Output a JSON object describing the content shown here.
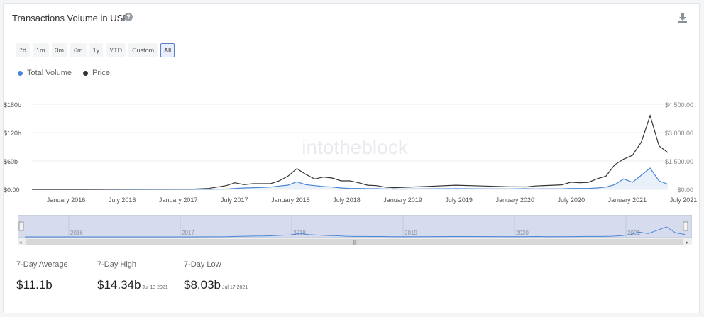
{
  "header": {
    "title": "Transactions Volume in USD",
    "help_icon": "question-circle-icon",
    "download_icon": "download-icon"
  },
  "ranges": [
    "7d",
    "1m",
    "3m",
    "6m",
    "1y",
    "YTD",
    "Custom",
    "All"
  ],
  "active_range": "All",
  "watermark": "intotheblock",
  "colors": {
    "volume": "#4a86d6",
    "price": "#333333",
    "avg": "#3d5fa8",
    "high": "#7ab648",
    "low": "#c96a4b"
  },
  "stats": [
    {
      "label": "7-Day Average",
      "value": "$11.1b",
      "date": ""
    },
    {
      "label": "7-Day High",
      "value": "$14.34b",
      "date": "Jul 13 2021"
    },
    {
      "label": "7-Day Low",
      "value": "$8.03b",
      "date": "Jul 17 2021"
    }
  ],
  "navigator": {
    "years": [
      "2016",
      "2017",
      "2018",
      "2019",
      "2020",
      "2021"
    ],
    "scroll_handle": "|||"
  },
  "chart_data": {
    "type": "line",
    "title": "Transactions Volume in USD",
    "x": [
      "Jul 2015",
      "Jan 2016",
      "Jul 2016",
      "Jan 2017",
      "Mar 2017",
      "May 2017",
      "Jun 2017",
      "Jul 2017",
      "Aug 2017",
      "Sep 2017",
      "Oct 2017",
      "Nov 2017",
      "Dec 2017",
      "Jan 2018",
      "Feb 2018",
      "Mar 2018",
      "Apr 2018",
      "May 2018",
      "Jun 2018",
      "Jul 2018",
      "Aug 2018",
      "Sep 2018",
      "Oct 2018",
      "Nov 2018",
      "Dec 2018",
      "Jan 2019",
      "Apr 2019",
      "Jul 2019",
      "Oct 2019",
      "Jan 2020",
      "Mar 2020",
      "Apr 2020",
      "Jul 2020",
      "Aug 2020",
      "Sep 2020",
      "Oct 2020",
      "Nov 2020",
      "Dec 2020",
      "Jan 2021",
      "Feb 2021",
      "Mar 2021",
      "Apr 2021",
      "May 2021",
      "Jun 2021",
      "Jul 2021"
    ],
    "x_ticks": [
      "January 2016",
      "July 2016",
      "January 2017",
      "July 2017",
      "January 2018",
      "July 2018",
      "January 2019",
      "July 2019",
      "January 2020",
      "July 2020",
      "January 2021",
      "July 2021"
    ],
    "y_left": {
      "ticks": [
        "$0.00",
        "$60b",
        "$120b",
        "$180b"
      ],
      "range": [
        0,
        180
      ]
    },
    "y_right": {
      "ticks": [
        "$0.00",
        "$1,500.00",
        "$3,000.00",
        "$4,500.00"
      ],
      "range": [
        0,
        4500
      ]
    },
    "series": [
      {
        "name": "Total Volume",
        "axis": "left",
        "values": [
          0,
          0,
          0,
          0.1,
          0.3,
          0.8,
          2,
          3,
          3.5,
          4,
          5,
          7,
          9,
          16,
          10,
          8,
          6,
          5,
          3,
          2,
          2,
          1.5,
          1.5,
          1,
          0.8,
          0.8,
          1.2,
          1.5,
          1.2,
          1,
          1.5,
          1,
          1.2,
          2,
          2,
          2,
          3,
          5,
          10,
          22,
          15,
          30,
          45,
          18,
          11
        ]
      },
      {
        "name": "Price",
        "axis": "right",
        "values": [
          1,
          1,
          10,
          10,
          50,
          200,
          350,
          250,
          300,
          300,
          300,
          450,
          700,
          1100,
          800,
          550,
          650,
          600,
          450,
          450,
          350,
          220,
          200,
          120,
          90,
          110,
          160,
          220,
          180,
          140,
          130,
          180,
          240,
          380,
          350,
          370,
          560,
          700,
          1300,
          1600,
          1800,
          2500,
          3900,
          2300,
          1950
        ]
      }
    ]
  }
}
